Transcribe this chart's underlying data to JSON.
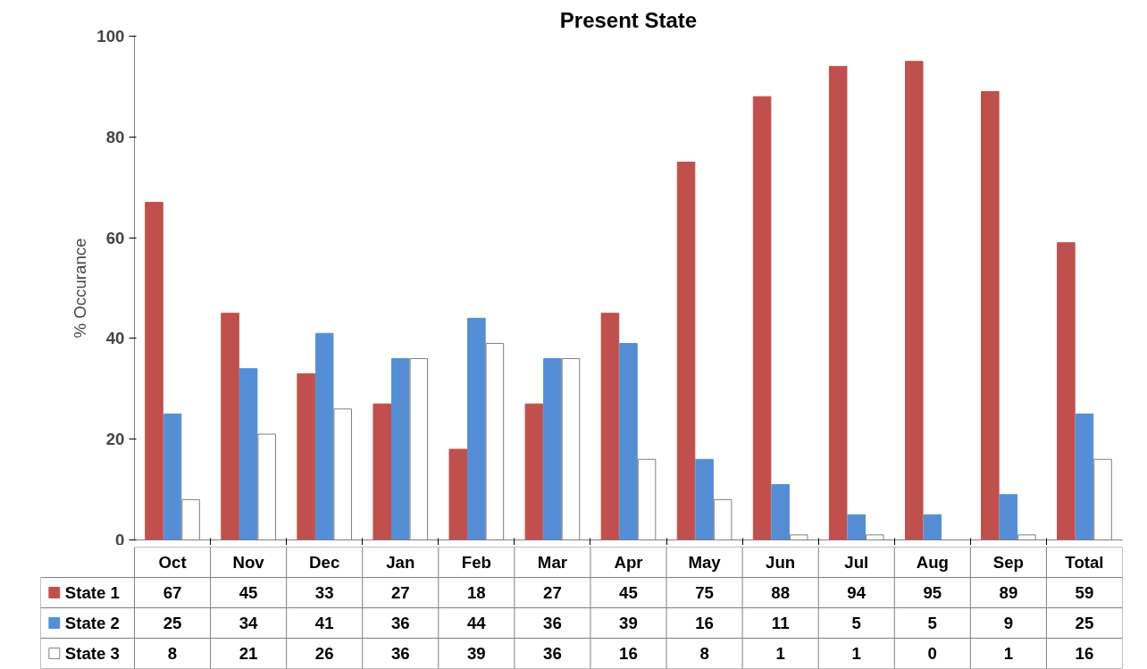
{
  "chart_data": {
    "type": "bar",
    "title": "Present State",
    "ylabel": "% Occurance",
    "categories": [
      "Oct",
      "Nov",
      "Dec",
      "Jan",
      "Feb",
      "Mar",
      "Apr",
      "May",
      "Jun",
      "Jul",
      "Aug",
      "Sep",
      "Total"
    ],
    "series": [
      {
        "name": "State 1",
        "color": "#c0504d",
        "values": [
          67,
          45,
          33,
          27,
          18,
          27,
          45,
          75,
          88,
          94,
          95,
          89,
          59
        ]
      },
      {
        "name": "State 2",
        "color": "#558ed5",
        "values": [
          25,
          34,
          41,
          36,
          44,
          36,
          39,
          16,
          11,
          5,
          5,
          9,
          25
        ]
      },
      {
        "name": "State 3",
        "color": "#ffffff",
        "values": [
          8,
          21,
          26,
          36,
          39,
          36,
          16,
          8,
          1,
          1,
          0,
          1,
          16
        ]
      }
    ],
    "ylim": [
      0,
      100
    ],
    "yticks": [
      0,
      20,
      40,
      60,
      80,
      100
    ],
    "data_labels": true,
    "legend": "bottom"
  }
}
